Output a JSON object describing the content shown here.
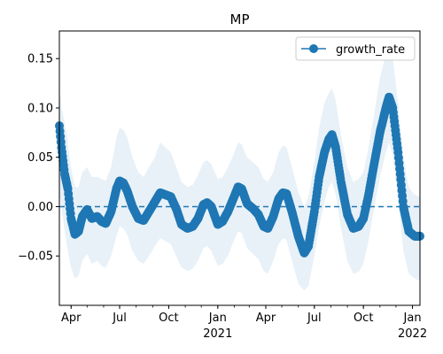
{
  "chart_data": {
    "type": "line",
    "title": "MP",
    "xlabel": "",
    "ylabel": "",
    "x_range": [
      "2020-03-10",
      "2022-01-15"
    ],
    "ylim": [
      -0.1,
      0.178
    ],
    "y_ticks": [
      -0.05,
      0.0,
      0.05,
      0.1,
      0.15
    ],
    "y_tick_labels": [
      "−0.05",
      "0.00",
      "0.05",
      "0.10",
      "0.15"
    ],
    "x_ticks": [
      {
        "date": "2020-04-01",
        "label": "Apr",
        "sub": ""
      },
      {
        "date": "2020-07-01",
        "label": "Jul",
        "sub": ""
      },
      {
        "date": "2020-10-01",
        "label": "Oct",
        "sub": ""
      },
      {
        "date": "2021-01-01",
        "label": "Jan",
        "sub": "2021"
      },
      {
        "date": "2021-04-01",
        "label": "Apr",
        "sub": ""
      },
      {
        "date": "2021-07-01",
        "label": "Jul",
        "sub": ""
      },
      {
        "date": "2021-10-01",
        "label": "Oct",
        "sub": ""
      },
      {
        "date": "2022-01-01",
        "label": "Jan",
        "sub": "2022"
      }
    ],
    "reference_line": {
      "y": 0.0,
      "style": "dashed"
    },
    "legend": {
      "position": "top-right",
      "entries": [
        "growth_rate"
      ]
    },
    "grid": false,
    "series": [
      {
        "name": "growth_rate",
        "color": "#1f77b4",
        "band_color": "#1f77b4",
        "band_opacity": 0.1,
        "points": [
          {
            "date": "2020-03-10",
            "y": 0.082,
            "lo": 0.012,
            "hi": 0.12
          },
          {
            "date": "2020-03-14",
            "y": 0.06,
            "lo": 0.0,
            "hi": 0.1
          },
          {
            "date": "2020-03-20",
            "y": 0.033,
            "lo": -0.025,
            "hi": 0.085
          },
          {
            "date": "2020-03-26",
            "y": 0.018,
            "lo": -0.045,
            "hi": 0.065
          },
          {
            "date": "2020-04-01",
            "y": -0.012,
            "lo": -0.062,
            "hi": 0.04
          },
          {
            "date": "2020-04-08",
            "y": -0.028,
            "lo": -0.073,
            "hi": 0.02
          },
          {
            "date": "2020-04-15",
            "y": -0.025,
            "lo": -0.07,
            "hi": 0.02
          },
          {
            "date": "2020-04-22",
            "y": -0.01,
            "lo": -0.055,
            "hi": 0.035
          },
          {
            "date": "2020-05-01",
            "y": -0.003,
            "lo": -0.048,
            "hi": 0.04
          },
          {
            "date": "2020-05-10",
            "y": -0.012,
            "lo": -0.058,
            "hi": 0.03
          },
          {
            "date": "2020-05-20",
            "y": -0.01,
            "lo": -0.055,
            "hi": 0.03
          },
          {
            "date": "2020-05-28",
            "y": -0.015,
            "lo": -0.06,
            "hi": 0.028
          },
          {
            "date": "2020-06-05",
            "y": -0.017,
            "lo": -0.062,
            "hi": 0.026
          },
          {
            "date": "2020-06-15",
            "y": -0.005,
            "lo": -0.05,
            "hi": 0.04
          },
          {
            "date": "2020-06-25",
            "y": 0.018,
            "lo": -0.03,
            "hi": 0.07
          },
          {
            "date": "2020-07-01",
            "y": 0.026,
            "lo": -0.02,
            "hi": 0.08
          },
          {
            "date": "2020-07-08",
            "y": 0.024,
            "lo": -0.022,
            "hi": 0.078
          },
          {
            "date": "2020-07-15",
            "y": 0.016,
            "lo": -0.028,
            "hi": 0.07
          },
          {
            "date": "2020-07-25",
            "y": 0.0,
            "lo": -0.045,
            "hi": 0.05
          },
          {
            "date": "2020-08-05",
            "y": -0.012,
            "lo": -0.055,
            "hi": 0.035
          },
          {
            "date": "2020-08-15",
            "y": -0.014,
            "lo": -0.058,
            "hi": 0.03
          },
          {
            "date": "2020-08-25",
            "y": -0.005,
            "lo": -0.05,
            "hi": 0.04
          },
          {
            "date": "2020-09-05",
            "y": 0.005,
            "lo": -0.04,
            "hi": 0.05
          },
          {
            "date": "2020-09-15",
            "y": 0.014,
            "lo": -0.032,
            "hi": 0.065
          },
          {
            "date": "2020-09-25",
            "y": 0.012,
            "lo": -0.035,
            "hi": 0.06
          },
          {
            "date": "2020-10-05",
            "y": 0.01,
            "lo": -0.038,
            "hi": 0.055
          },
          {
            "date": "2020-10-15",
            "y": -0.002,
            "lo": -0.05,
            "hi": 0.04
          },
          {
            "date": "2020-10-25",
            "y": -0.018,
            "lo": -0.062,
            "hi": 0.025
          },
          {
            "date": "2020-11-05",
            "y": -0.022,
            "lo": -0.065,
            "hi": 0.02
          },
          {
            "date": "2020-11-15",
            "y": -0.02,
            "lo": -0.063,
            "hi": 0.022
          },
          {
            "date": "2020-11-25",
            "y": -0.012,
            "lo": -0.055,
            "hi": 0.032
          },
          {
            "date": "2020-12-05",
            "y": 0.002,
            "lo": -0.042,
            "hi": 0.045
          },
          {
            "date": "2020-12-12",
            "y": 0.004,
            "lo": -0.04,
            "hi": 0.047
          },
          {
            "date": "2020-12-20",
            "y": 0.0,
            "lo": -0.045,
            "hi": 0.043
          },
          {
            "date": "2021-01-01",
            "y": -0.018,
            "lo": -0.06,
            "hi": 0.028
          },
          {
            "date": "2021-01-10",
            "y": -0.015,
            "lo": -0.058,
            "hi": 0.03
          },
          {
            "date": "2021-01-20",
            "y": -0.005,
            "lo": -0.05,
            "hi": 0.04
          },
          {
            "date": "2021-01-30",
            "y": 0.008,
            "lo": -0.036,
            "hi": 0.052
          },
          {
            "date": "2021-02-08",
            "y": 0.02,
            "lo": -0.025,
            "hi": 0.065
          },
          {
            "date": "2021-02-15",
            "y": 0.018,
            "lo": -0.027,
            "hi": 0.063
          },
          {
            "date": "2021-02-25",
            "y": 0.003,
            "lo": -0.042,
            "hi": 0.05
          },
          {
            "date": "2021-03-08",
            "y": -0.002,
            "lo": -0.048,
            "hi": 0.045
          },
          {
            "date": "2021-03-18",
            "y": -0.008,
            "lo": -0.053,
            "hi": 0.04
          },
          {
            "date": "2021-03-28",
            "y": -0.02,
            "lo": -0.065,
            "hi": 0.028
          },
          {
            "date": "2021-04-05",
            "y": -0.022,
            "lo": -0.068,
            "hi": 0.025
          },
          {
            "date": "2021-04-15",
            "y": -0.01,
            "lo": -0.055,
            "hi": 0.035
          },
          {
            "date": "2021-04-25",
            "y": 0.008,
            "lo": -0.038,
            "hi": 0.055
          },
          {
            "date": "2021-05-03",
            "y": 0.014,
            "lo": -0.032,
            "hi": 0.062
          },
          {
            "date": "2021-05-10",
            "y": 0.013,
            "lo": -0.034,
            "hi": 0.06
          },
          {
            "date": "2021-05-20",
            "y": -0.005,
            "lo": -0.055,
            "hi": 0.04
          },
          {
            "date": "2021-06-01",
            "y": -0.03,
            "lo": -0.078,
            "hi": 0.015
          },
          {
            "date": "2021-06-12",
            "y": -0.047,
            "lo": -0.085,
            "hi": 0.0
          },
          {
            "date": "2021-06-20",
            "y": -0.04,
            "lo": -0.08,
            "hi": 0.01
          },
          {
            "date": "2021-07-01",
            "y": -0.005,
            "lo": -0.05,
            "hi": 0.045
          },
          {
            "date": "2021-07-10",
            "y": 0.03,
            "lo": -0.02,
            "hi": 0.08
          },
          {
            "date": "2021-07-20",
            "y": 0.055,
            "lo": 0.005,
            "hi": 0.105
          },
          {
            "date": "2021-07-28",
            "y": 0.068,
            "lo": 0.02,
            "hi": 0.115
          },
          {
            "date": "2021-08-03",
            "y": 0.073,
            "lo": 0.025,
            "hi": 0.12
          },
          {
            "date": "2021-08-10",
            "y": 0.06,
            "lo": 0.012,
            "hi": 0.108
          },
          {
            "date": "2021-08-20",
            "y": 0.025,
            "lo": -0.022,
            "hi": 0.072
          },
          {
            "date": "2021-09-01",
            "y": -0.008,
            "lo": -0.055,
            "hi": 0.04
          },
          {
            "date": "2021-09-12",
            "y": -0.022,
            "lo": -0.068,
            "hi": 0.025
          },
          {
            "date": "2021-09-22",
            "y": -0.02,
            "lo": -0.066,
            "hi": 0.028
          },
          {
            "date": "2021-10-01",
            "y": -0.012,
            "lo": -0.058,
            "hi": 0.035
          },
          {
            "date": "2021-10-10",
            "y": 0.01,
            "lo": -0.036,
            "hi": 0.058
          },
          {
            "date": "2021-10-20",
            "y": 0.04,
            "lo": -0.005,
            "hi": 0.09
          },
          {
            "date": "2021-11-01",
            "y": 0.075,
            "lo": 0.03,
            "hi": 0.13
          },
          {
            "date": "2021-11-12",
            "y": 0.1,
            "lo": 0.055,
            "hi": 0.155
          },
          {
            "date": "2021-11-18",
            "y": 0.111,
            "lo": 0.065,
            "hi": 0.16
          },
          {
            "date": "2021-11-25",
            "y": 0.1,
            "lo": 0.052,
            "hi": 0.15
          },
          {
            "date": "2021-12-05",
            "y": 0.055,
            "lo": 0.008,
            "hi": 0.105
          },
          {
            "date": "2021-12-15",
            "y": 0.0,
            "lo": -0.045,
            "hi": 0.05
          },
          {
            "date": "2021-12-25",
            "y": -0.025,
            "lo": -0.068,
            "hi": 0.02
          },
          {
            "date": "2022-01-05",
            "y": -0.03,
            "lo": -0.073,
            "hi": 0.012
          },
          {
            "date": "2022-01-15",
            "y": -0.03,
            "lo": -0.075,
            "hi": 0.01
          }
        ]
      }
    ]
  }
}
